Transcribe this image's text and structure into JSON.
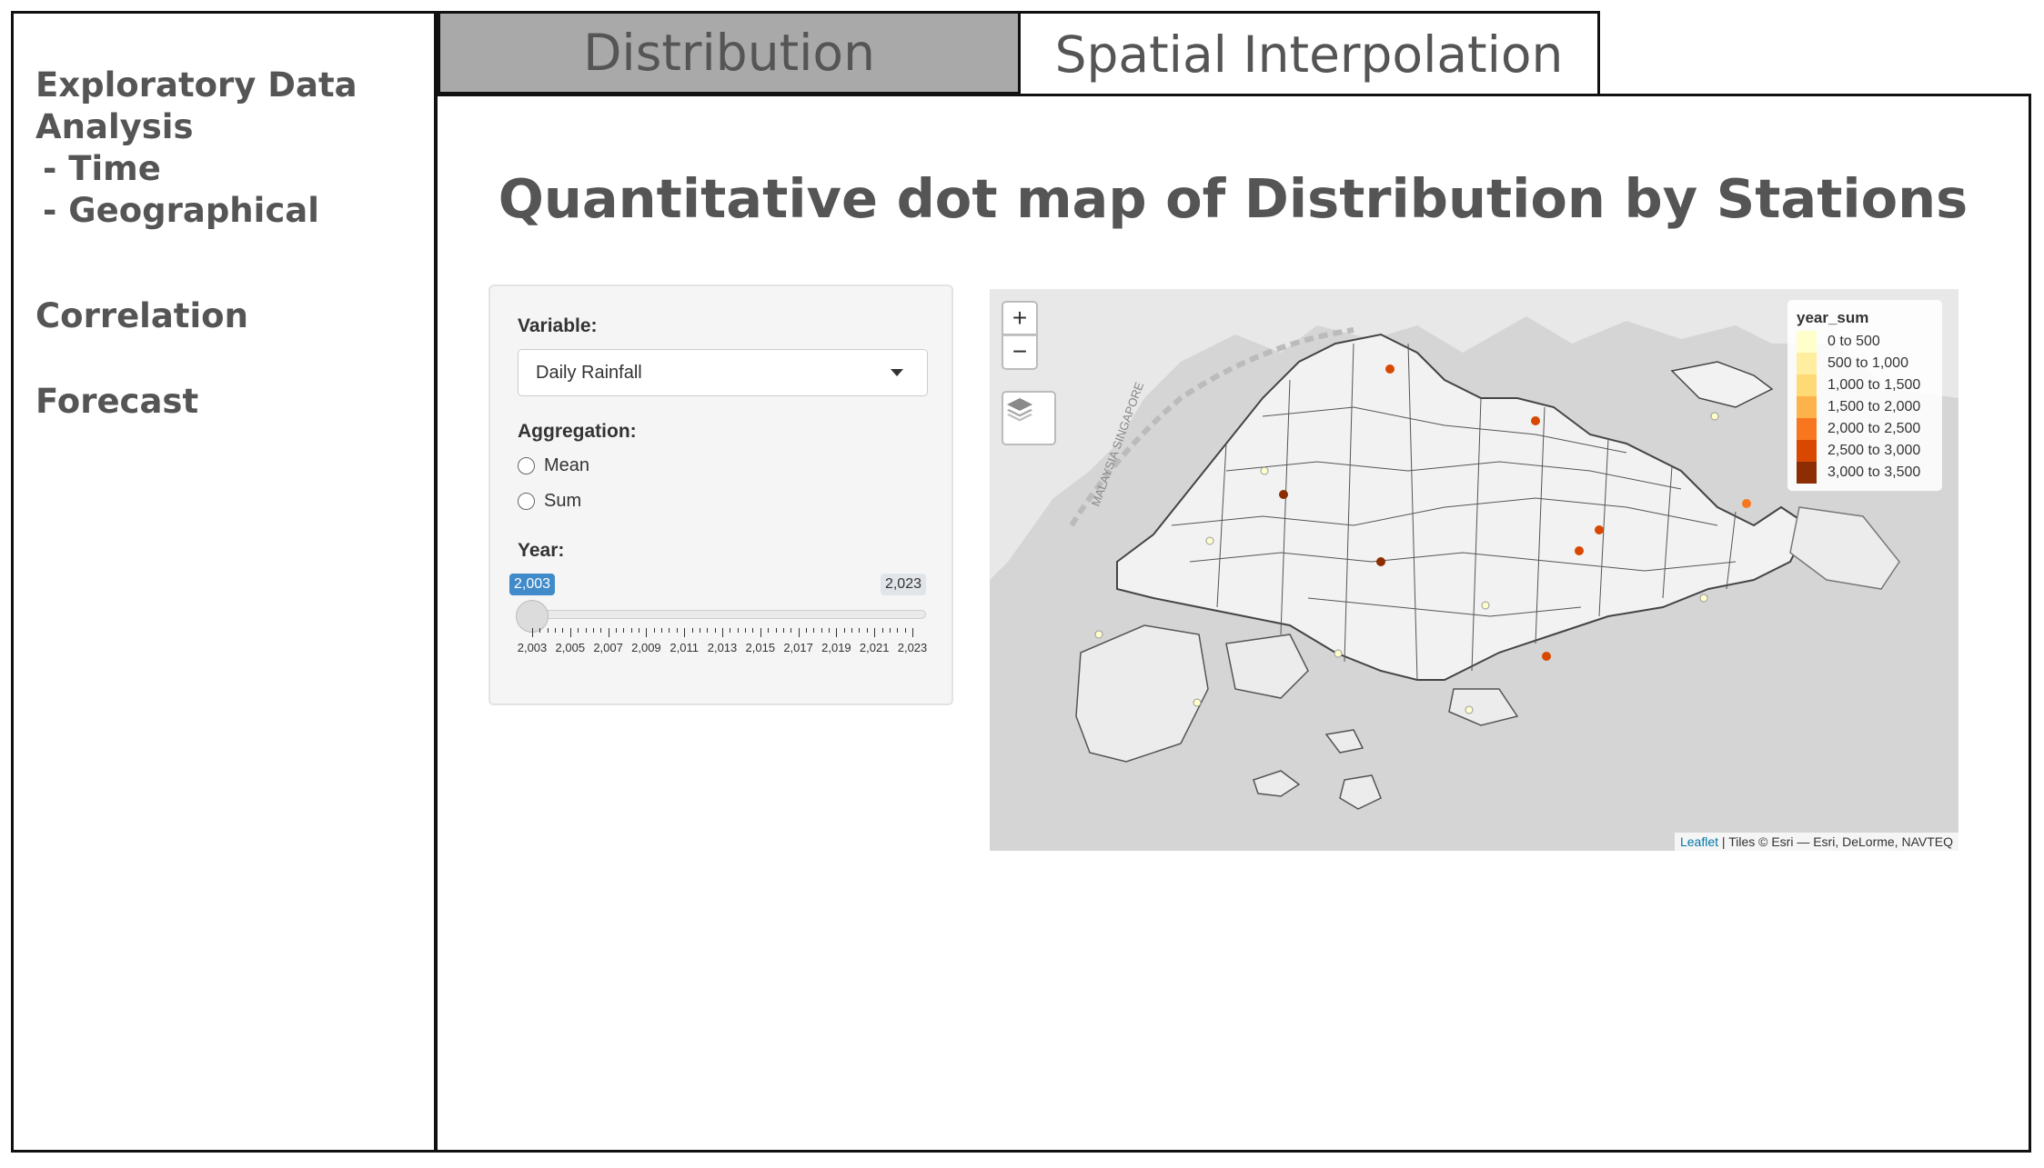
{
  "sidebar": {
    "eda_label": "Exploratory Data Analysis",
    "eda_sub_time": " - Time",
    "eda_sub_geo": " - Geographical",
    "correlation": "Correlation",
    "forecast": "Forecast"
  },
  "tabs": {
    "distribution": "Distribution",
    "spatial": "Spatial Interpolation"
  },
  "panel": {
    "title": "Quantitative dot map of Distribution by Stations"
  },
  "controls": {
    "variable_label": "Variable:",
    "variable_value": "Daily Rainfall",
    "aggregation_label": "Aggregation:",
    "agg_options": [
      "Mean",
      "Sum"
    ],
    "year_label": "Year:",
    "year_min": "2,003",
    "year_max": "2,023",
    "year_selected": "2,003",
    "year_ticks": [
      "2,003",
      "2,005",
      "2,007",
      "2,009",
      "2,011",
      "2,013",
      "2,015",
      "2,017",
      "2,019",
      "2,021",
      "2,023"
    ]
  },
  "map": {
    "zoom_in": "+",
    "zoom_out": "−",
    "region_label": "MALAYSIA SINGAPORE",
    "legend": {
      "title": "year_sum",
      "items": [
        {
          "label": "0 to 500",
          "color": "#ffffcc"
        },
        {
          "label": "500 to 1,000",
          "color": "#ffeda0"
        },
        {
          "label": "1,000 to 1,500",
          "color": "#fed976"
        },
        {
          "label": "1,500 to 2,000",
          "color": "#feb24c"
        },
        {
          "label": "2,000 to 2,500",
          "color": "#f8761e"
        },
        {
          "label": "2,500 to 3,000",
          "color": "#d94801"
        },
        {
          "label": "3,000 to 3,500",
          "color": "#8c2d04"
        }
      ]
    },
    "attribution_link": "Leaflet",
    "attribution_text": " | Tiles © Esri — Esri, DeLorme, NAVTEQ"
  }
}
